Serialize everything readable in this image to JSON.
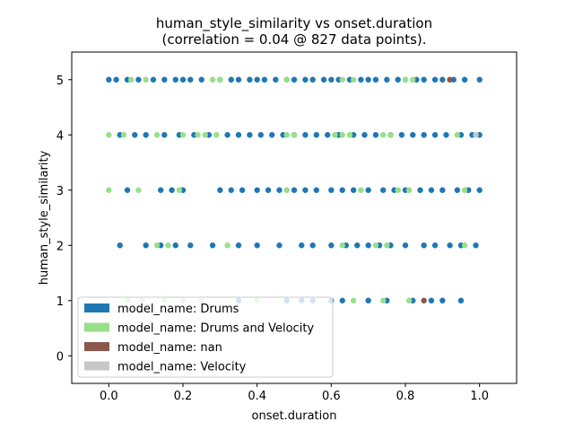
{
  "chart_data": {
    "type": "scatter",
    "title": "human_style_similarity vs onset.duration",
    "subtitle": "(correlation = 0.04 @ 827 data points).",
    "xlabel": "onset.duration",
    "ylabel": "human_style_similarity",
    "xlim": [
      -0.1,
      1.1
    ],
    "ylim": [
      -0.5,
      5.5
    ],
    "xticks": [
      "0.0",
      "0.2",
      "0.4",
      "0.6",
      "0.8",
      "1.0"
    ],
    "yticks": [
      "0",
      "1",
      "2",
      "3",
      "4",
      "5"
    ],
    "grid": false,
    "legend_position": "lower-left",
    "series": [
      {
        "name": "model_name: Drums",
        "color": "#1f77b4",
        "points": [
          [
            0.0,
            5
          ],
          [
            0.02,
            5
          ],
          [
            0.05,
            5
          ],
          [
            0.08,
            5
          ],
          [
            0.12,
            5
          ],
          [
            0.15,
            5
          ],
          [
            0.18,
            5
          ],
          [
            0.2,
            5
          ],
          [
            0.22,
            5
          ],
          [
            0.25,
            5
          ],
          [
            0.3,
            5
          ],
          [
            0.33,
            5
          ],
          [
            0.35,
            5
          ],
          [
            0.38,
            5
          ],
          [
            0.4,
            5
          ],
          [
            0.42,
            5
          ],
          [
            0.45,
            5
          ],
          [
            0.48,
            5
          ],
          [
            0.5,
            5
          ],
          [
            0.53,
            5
          ],
          [
            0.55,
            5
          ],
          [
            0.58,
            5
          ],
          [
            0.6,
            5
          ],
          [
            0.62,
            5
          ],
          [
            0.65,
            5
          ],
          [
            0.68,
            5
          ],
          [
            0.7,
            5
          ],
          [
            0.72,
            5
          ],
          [
            0.75,
            5
          ],
          [
            0.78,
            5
          ],
          [
            0.8,
            5
          ],
          [
            0.83,
            5
          ],
          [
            0.85,
            5
          ],
          [
            0.88,
            5
          ],
          [
            0.9,
            5
          ],
          [
            0.93,
            5
          ],
          [
            0.96,
            5
          ],
          [
            1.0,
            5
          ],
          [
            0.03,
            4
          ],
          [
            0.07,
            4
          ],
          [
            0.1,
            4
          ],
          [
            0.15,
            4
          ],
          [
            0.19,
            4
          ],
          [
            0.23,
            4
          ],
          [
            0.27,
            4
          ],
          [
            0.32,
            4
          ],
          [
            0.35,
            4
          ],
          [
            0.38,
            4
          ],
          [
            0.41,
            4
          ],
          [
            0.44,
            4
          ],
          [
            0.47,
            4
          ],
          [
            0.5,
            4
          ],
          [
            0.53,
            4
          ],
          [
            0.56,
            4
          ],
          [
            0.59,
            4
          ],
          [
            0.62,
            4
          ],
          [
            0.66,
            4
          ],
          [
            0.69,
            4
          ],
          [
            0.72,
            4
          ],
          [
            0.76,
            4
          ],
          [
            0.79,
            4
          ],
          [
            0.82,
            4
          ],
          [
            0.85,
            4
          ],
          [
            0.88,
            4
          ],
          [
            0.91,
            4
          ],
          [
            0.95,
            4
          ],
          [
            0.98,
            4
          ],
          [
            1.0,
            4
          ],
          [
            0.05,
            3
          ],
          [
            0.14,
            3
          ],
          [
            0.17,
            3
          ],
          [
            0.2,
            3
          ],
          [
            0.3,
            3
          ],
          [
            0.33,
            3
          ],
          [
            0.36,
            3
          ],
          [
            0.4,
            3
          ],
          [
            0.43,
            3
          ],
          [
            0.46,
            3
          ],
          [
            0.5,
            3
          ],
          [
            0.53,
            3
          ],
          [
            0.56,
            3
          ],
          [
            0.6,
            3
          ],
          [
            0.63,
            3
          ],
          [
            0.66,
            3
          ],
          [
            0.7,
            3
          ],
          [
            0.74,
            3
          ],
          [
            0.77,
            3
          ],
          [
            0.8,
            3
          ],
          [
            0.84,
            3
          ],
          [
            0.87,
            3
          ],
          [
            0.9,
            3
          ],
          [
            0.94,
            3
          ],
          [
            0.97,
            3
          ],
          [
            1.0,
            3
          ],
          [
            0.03,
            2
          ],
          [
            0.1,
            2
          ],
          [
            0.14,
            2
          ],
          [
            0.18,
            2
          ],
          [
            0.22,
            2
          ],
          [
            0.28,
            2
          ],
          [
            0.35,
            2
          ],
          [
            0.4,
            2
          ],
          [
            0.46,
            2
          ],
          [
            0.52,
            2
          ],
          [
            0.55,
            2
          ],
          [
            0.6,
            2
          ],
          [
            0.64,
            2
          ],
          [
            0.67,
            2
          ],
          [
            0.7,
            2
          ],
          [
            0.73,
            2
          ],
          [
            0.76,
            2
          ],
          [
            0.8,
            2
          ],
          [
            0.85,
            2
          ],
          [
            0.88,
            2
          ],
          [
            0.92,
            2
          ],
          [
            0.95,
            2
          ],
          [
            0.99,
            2
          ],
          [
            0.35,
            1
          ],
          [
            0.48,
            1
          ],
          [
            0.52,
            1
          ],
          [
            0.55,
            1
          ],
          [
            0.6,
            1
          ],
          [
            0.63,
            1
          ],
          [
            0.7,
            1
          ],
          [
            0.75,
            1
          ],
          [
            0.82,
            1
          ],
          [
            0.87,
            1
          ],
          [
            0.9,
            1
          ],
          [
            0.95,
            1
          ]
        ]
      },
      {
        "name": "model_name: Drums and Velocity",
        "color": "#98df8a",
        "points": [
          [
            0.06,
            5
          ],
          [
            0.1,
            5
          ],
          [
            0.28,
            5
          ],
          [
            0.3,
            5
          ],
          [
            0.48,
            5
          ],
          [
            0.63,
            5
          ],
          [
            0.66,
            5
          ],
          [
            0.8,
            5
          ],
          [
            0.82,
            5
          ],
          [
            0.0,
            4
          ],
          [
            0.04,
            4
          ],
          [
            0.13,
            4
          ],
          [
            0.2,
            4
          ],
          [
            0.24,
            4
          ],
          [
            0.26,
            4
          ],
          [
            0.29,
            4
          ],
          [
            0.48,
            4
          ],
          [
            0.5,
            4
          ],
          [
            0.61,
            4
          ],
          [
            0.63,
            4
          ],
          [
            0.65,
            4
          ],
          [
            0.74,
            4
          ],
          [
            0.76,
            4
          ],
          [
            0.94,
            4
          ],
          [
            0.0,
            3
          ],
          [
            0.08,
            3
          ],
          [
            0.19,
            3
          ],
          [
            0.48,
            3
          ],
          [
            0.68,
            3
          ],
          [
            0.78,
            3
          ],
          [
            0.81,
            3
          ],
          [
            0.96,
            3
          ],
          [
            0.13,
            2
          ],
          [
            0.16,
            2
          ],
          [
            0.32,
            2
          ],
          [
            0.63,
            2
          ],
          [
            0.72,
            2
          ],
          [
            0.75,
            2
          ],
          [
            0.96,
            2
          ],
          [
            0.05,
            1
          ],
          [
            0.09,
            1
          ],
          [
            0.15,
            1
          ],
          [
            0.2,
            1
          ],
          [
            0.25,
            1
          ],
          [
            0.4,
            1
          ],
          [
            0.66,
            1
          ],
          [
            0.74,
            1
          ],
          [
            0.81,
            1
          ]
        ]
      },
      {
        "name": "model_name: nan",
        "color": "#8c564b",
        "points": [
          [
            0.92,
            5
          ],
          [
            0.85,
            1
          ]
        ]
      },
      {
        "name": "model_name: Velocity",
        "color": "#c7c7c7",
        "points": [
          [
            0.99,
            4
          ]
        ]
      }
    ]
  }
}
